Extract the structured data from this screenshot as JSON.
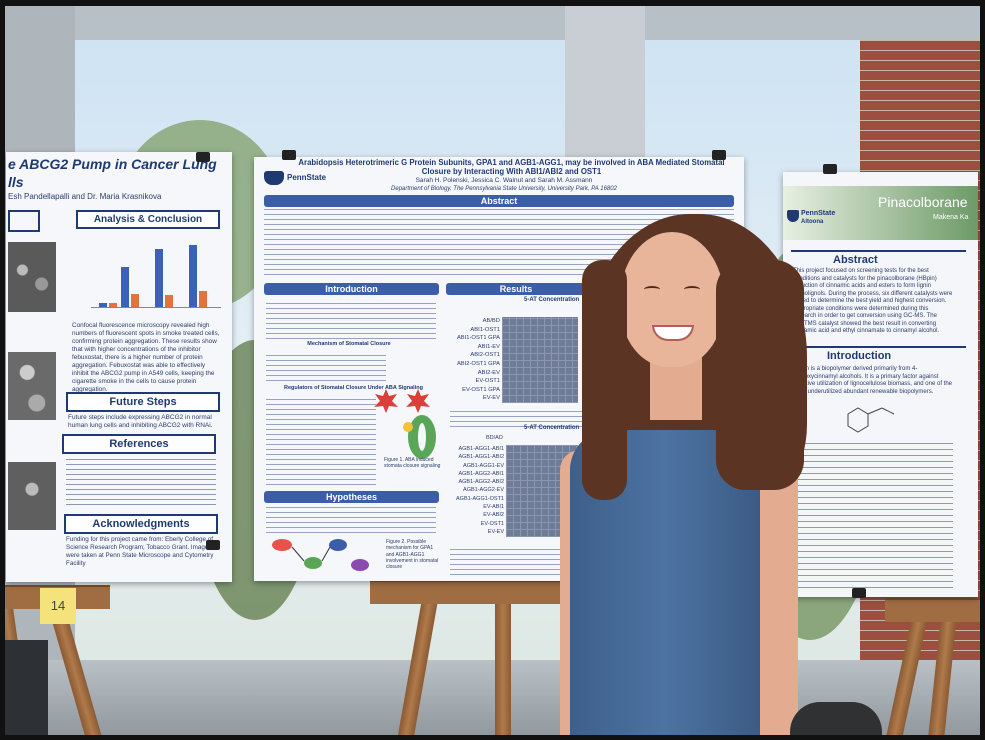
{
  "left_poster": {
    "title_fragment": "e ABCG2 Pump in Cancer Lung",
    "title_line2": "lls",
    "authors": "Esh Pandellapalli and Dr. Maria Krasnikova",
    "section_analysis": "Analysis & Conclusion",
    "conclusion_text": "Confocal fluorescence microscopy revealed high numbers of fluorescent spots in smoke treated cells, confirming protein aggregation. These results show that with higher concentrations of the inhibitor febuxostat, there is a higher number of protein aggregation. Febuxostat was able to effectively inhibit the ABCG2 pump in A549 cells, keeping the cigarette smoke in the cells to cause protein aggregation.",
    "section_future": "Future Steps",
    "future_text": "Future steps include expressing ABCG2 in normal human lung cells and inhibiting ABCG2 with RNAi.",
    "section_references": "References",
    "section_ack": "Acknowledgments",
    "ack_text": "Funding for this project came from: Eberly College of Science Research Program; Tobacco Grant. Images were taken at Penn State Microscope and Cytometry Facility"
  },
  "center_poster": {
    "title": "Arabidopsis Heterotrimeric G Protein Subunits, GPA1 and AGB1-AGG1, may be involved in ABA Mediated Stomatal Closure by Interacting With ABI1/ABI2 and OST1",
    "authors": "Sarah H. Polenski, Jessica C. Walnut and Sarah M. Assmann",
    "affiliation": "Department of Biology, The Pennsylvania State University, University Park, PA 16802",
    "logo": "PennState",
    "section_abstract": "Abstract",
    "section_introduction": "Introduction",
    "intro_sub1": "Mechanism of Stomatal Closure",
    "intro_sub2": "Regulators of Stomatal Closure Under ABA Signaling",
    "section_results": "Results",
    "results_sub1": "5-AT Concentration",
    "results_sub2": "5-AT Concentration",
    "section_hypotheses": "Hypotheses",
    "figure1_caption": "Figure 1. ABA induced stomata closure signaling",
    "figure2_caption": "Figure 2. Possible mechanism for GPA1 and AGB1-AGG1 involvement in stomatal closure",
    "bait_label": "BD/AD",
    "row_labels_top": [
      "AB/BD",
      "ABI1-OST1",
      "ABI1-OST1 GPA",
      "ABI1-EV",
      "ABI2-OST1",
      "ABI2-OST1 GPA",
      "ABI2-EV",
      "EV-OST1",
      "EV-OST1 GPA",
      "EV-EV"
    ],
    "row_labels_bottom": [
      "AGB1-AGG1-ABI1",
      "AGB1-AGG1-ABI2",
      "AGB1-AGG1-EV",
      "AGB1-AGG2-ABI1",
      "AGB1-AGG2-ABI2",
      "AGB1-AGG2-EV",
      "AGB1-AGG1-OST1",
      "EV-ABI1",
      "EV-ABI2",
      "EV-OST1",
      "EV-EV"
    ]
  },
  "right_poster": {
    "title": "Pinacolborane",
    "logo": "PennState",
    "campus": "Altoona",
    "author_fragment": "Makena Ka",
    "section_abstract": "Abstract",
    "abstract_text": "This project focused on screening tests for the best conditions and catalysts for the pinacolborane (HBpin) reduction of cinnamic acids and esters to form lignin monolignols. During the process, six different catalysts were tested to determine the best yield and highest conversion. Appropriate conditions were determined during this research in order to get conversion using GC-MS. The LaNTMS catalyst showed the best result in converting cinnamic acid and ethyl cinnamate to cinnamyl alcohol.",
    "section_introduction": "Introduction",
    "intro_text": "Lignin is a biopolymer derived primarily from 4-hydroxycinnamyl alcohols. It is a primary factor against effective utilization of lignocellulose biomass, and one of the most underutilized abundant renewable biopolymers."
  },
  "sticky_note": "14"
}
